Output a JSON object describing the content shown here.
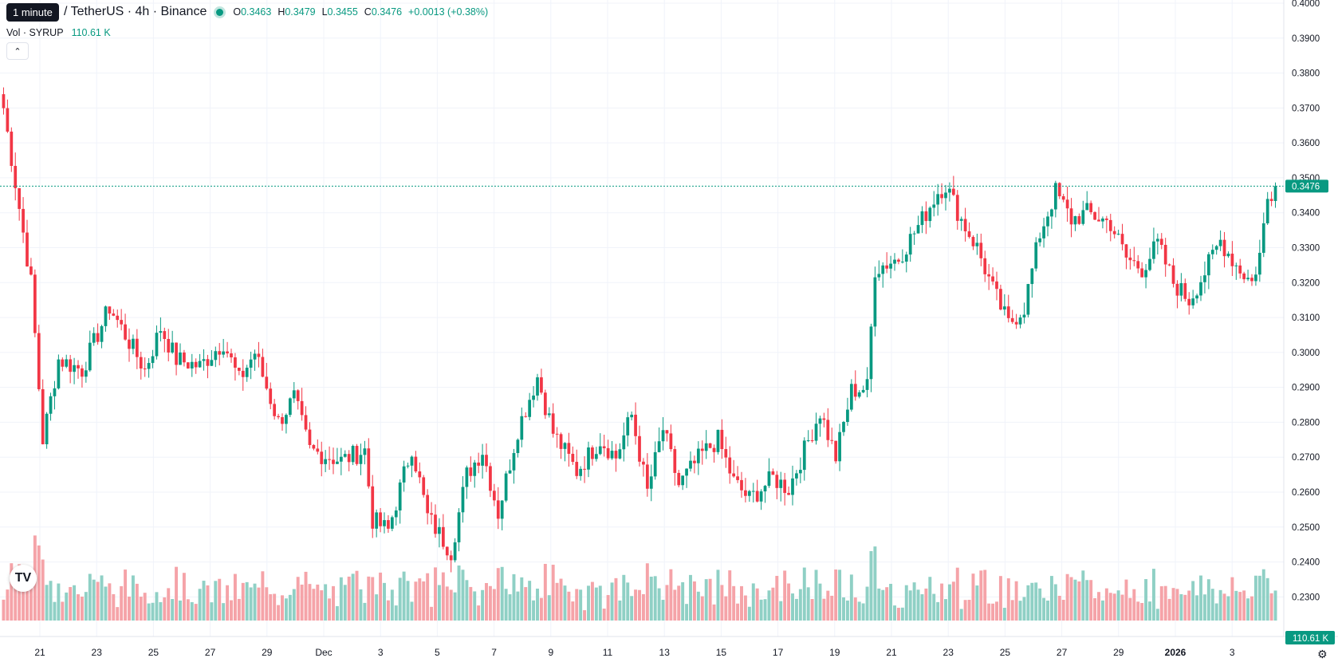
{
  "tooltip": "1 minute",
  "header": {
    "symbol_title": "/ TetherUS · 4h · Binance",
    "o_label": "O",
    "o_value": "0.3463",
    "h_label": "H",
    "h_value": "0.3479",
    "l_label": "L",
    "l_value": "0.3455",
    "c_label": "C",
    "c_value": "0.3476",
    "change": "+0.0013 (+0.38%)"
  },
  "volume": {
    "label": "Vol · SYRUP",
    "value": "110.61 K"
  },
  "colors": {
    "up": "#089981",
    "down": "#f23645",
    "up_vol": "#8fd0c5",
    "down_vol": "#f5a3a8",
    "grid": "#f0f3fa"
  },
  "icons": {
    "collapse": "chevron-up-icon",
    "logo": "tradingview-logo-icon",
    "settings": "gear-icon"
  },
  "price_axis": {
    "ticks": [
      "0.4000",
      "0.3900",
      "0.3800",
      "0.3700",
      "0.3600",
      "0.3500",
      "0.3400",
      "0.3300",
      "0.3200",
      "0.3100",
      "0.3000",
      "0.2900",
      "0.2800",
      "0.2700",
      "0.2600",
      "0.2500",
      "0.2400",
      "0.2300"
    ],
    "last_price": "0.3476",
    "volume_badge": "110.61 K"
  },
  "time_axis": {
    "labels": [
      "21",
      "23",
      "25",
      "27",
      "29",
      "Dec",
      "3",
      "5",
      "7",
      "9",
      "11",
      "13",
      "15",
      "17",
      "19",
      "21",
      "23",
      "25",
      "27",
      "29",
      "2026",
      "3"
    ]
  },
  "chart_data": {
    "type": "candlestick",
    "interval": "4h",
    "ylim": [
      0.223,
      0.4
    ],
    "last": 0.3476,
    "close_path": [
      [
        0,
        0.37
      ],
      [
        7,
        0.32
      ],
      [
        10,
        0.275
      ],
      [
        14,
        0.298
      ],
      [
        20,
        0.295
      ],
      [
        27,
        0.313
      ],
      [
        32,
        0.303
      ],
      [
        36,
        0.295
      ],
      [
        40,
        0.307
      ],
      [
        44,
        0.298
      ],
      [
        50,
        0.296
      ],
      [
        56,
        0.303
      ],
      [
        60,
        0.292
      ],
      [
        64,
        0.3
      ],
      [
        70,
        0.28
      ],
      [
        74,
        0.287
      ],
      [
        78,
        0.272
      ],
      [
        86,
        0.269
      ],
      [
        92,
        0.272
      ],
      [
        94,
        0.252
      ],
      [
        98,
        0.249
      ],
      [
        104,
        0.273
      ],
      [
        108,
        0.253
      ],
      [
        114,
        0.243
      ],
      [
        118,
        0.265
      ],
      [
        122,
        0.272
      ],
      [
        126,
        0.254
      ],
      [
        131,
        0.278
      ],
      [
        136,
        0.293
      ],
      [
        140,
        0.277
      ],
      [
        146,
        0.266
      ],
      [
        152,
        0.275
      ],
      [
        156,
        0.27
      ],
      [
        160,
        0.282
      ],
      [
        164,
        0.26
      ],
      [
        168,
        0.278
      ],
      [
        172,
        0.262
      ],
      [
        178,
        0.271
      ],
      [
        182,
        0.275
      ],
      [
        186,
        0.263
      ],
      [
        190,
        0.258
      ],
      [
        196,
        0.264
      ],
      [
        200,
        0.261
      ],
      [
        204,
        0.272
      ],
      [
        208,
        0.283
      ],
      [
        212,
        0.27
      ],
      [
        216,
        0.289
      ],
      [
        220,
        0.29
      ],
      [
        222,
        0.324
      ],
      [
        228,
        0.327
      ],
      [
        234,
        0.338
      ],
      [
        238,
        0.346
      ],
      [
        240,
        0.348
      ],
      [
        244,
        0.338
      ],
      [
        248,
        0.33
      ],
      [
        252,
        0.318
      ],
      [
        256,
        0.308
      ],
      [
        260,
        0.313
      ],
      [
        264,
        0.334
      ],
      [
        268,
        0.346
      ],
      [
        272,
        0.338
      ],
      [
        276,
        0.34
      ],
      [
        282,
        0.337
      ],
      [
        286,
        0.327
      ],
      [
        290,
        0.324
      ],
      [
        294,
        0.331
      ],
      [
        298,
        0.32
      ],
      [
        302,
        0.315
      ],
      [
        306,
        0.323
      ],
      [
        310,
        0.332
      ],
      [
        314,
        0.325
      ],
      [
        318,
        0.32
      ],
      [
        320,
        0.328
      ],
      [
        322,
        0.344
      ],
      [
        324,
        0.3476
      ]
    ]
  }
}
